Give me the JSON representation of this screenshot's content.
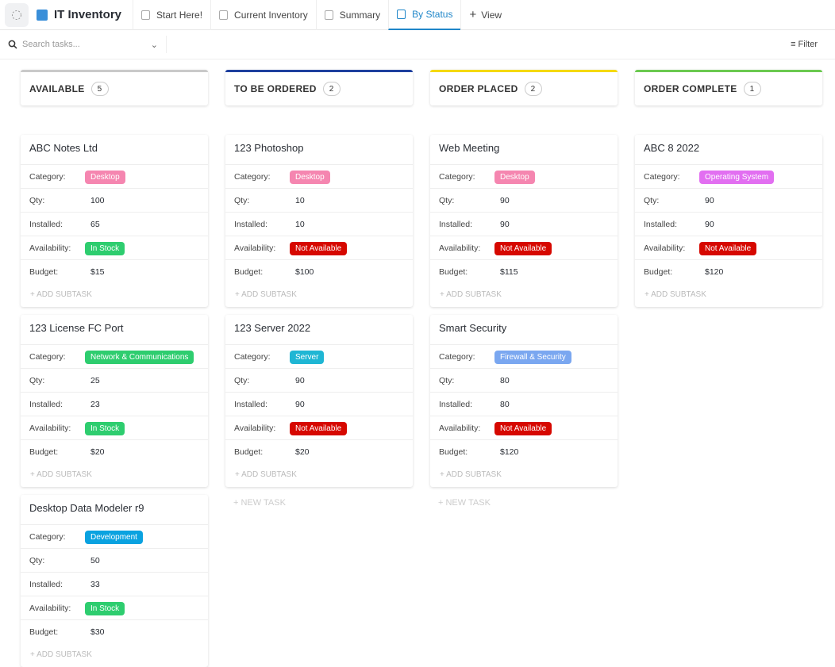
{
  "app": {
    "title": "IT Inventory",
    "tabs": [
      {
        "label": "Start Here!",
        "active": false
      },
      {
        "label": "Current Inventory",
        "active": false
      },
      {
        "label": "Summary",
        "active": false
      },
      {
        "label": "By Status",
        "active": true
      }
    ],
    "add_view": "View"
  },
  "toolbar": {
    "search_placeholder": "Search tasks...",
    "filter": "Filter"
  },
  "field_labels": [
    "Category:",
    "Qty:",
    "Installed:",
    "Availability:",
    "Budget:"
  ],
  "add_subtask": "+ ADD SUBTASK",
  "new_task": "+ NEW TASK",
  "columns": [
    {
      "name": "AVAILABLE",
      "count": 5,
      "color": "#c9c9c9",
      "show_new_task": false,
      "cards": [
        {
          "title": "ABC Notes Ltd",
          "category": {
            "label": "Desktop",
            "color": "#f586b0"
          },
          "qty": 100,
          "installed": 65,
          "availability": {
            "label": "In Stock",
            "color": "#2ecd6f"
          },
          "budget": "$15"
        },
        {
          "title": "123 License FC Port",
          "category": {
            "label": "Network & Communications",
            "color": "#2ecd6f"
          },
          "qty": 25,
          "installed": 23,
          "availability": {
            "label": "In Stock",
            "color": "#2ecd6f"
          },
          "budget": "$20"
        },
        {
          "title": "Desktop Data Modeler r9",
          "category": {
            "label": "Development",
            "color": "#0aa2e0"
          },
          "qty": 50,
          "installed": 33,
          "availability": {
            "label": "In Stock",
            "color": "#2ecd6f"
          },
          "budget": "$30"
        }
      ]
    },
    {
      "name": "TO BE ORDERED",
      "count": 2,
      "color": "#1e3f9e",
      "show_new_task": true,
      "cards": [
        {
          "title": "123 Photoshop",
          "category": {
            "label": "Desktop",
            "color": "#f586b0"
          },
          "qty": 10,
          "installed": 10,
          "availability": {
            "label": "Not Available",
            "color": "#d60800"
          },
          "budget": "$100"
        },
        {
          "title": "123 Server 2022",
          "category": {
            "label": "Server",
            "color": "#1fb6d4"
          },
          "qty": 90,
          "installed": 90,
          "availability": {
            "label": "Not Available",
            "color": "#d60800"
          },
          "budget": "$20"
        }
      ]
    },
    {
      "name": "ORDER PLACED",
      "count": 2,
      "color": "#f5d90a",
      "show_new_task": true,
      "cards": [
        {
          "title": "Web Meeting",
          "category": {
            "label": "Desktop",
            "color": "#f586b0"
          },
          "qty": 90,
          "installed": 90,
          "availability": {
            "label": "Not Available",
            "color": "#d60800"
          },
          "budget": "$115"
        },
        {
          "title": "Smart Security",
          "category": {
            "label": "Firewall & Security",
            "color": "#7aa7f0"
          },
          "qty": 80,
          "installed": 80,
          "availability": {
            "label": "Not Available",
            "color": "#d60800"
          },
          "budget": "$120"
        }
      ]
    },
    {
      "name": "ORDER COMPLETE",
      "count": 1,
      "color": "#6bc950",
      "show_new_task": false,
      "cards": [
        {
          "title": "ABC 8 2022",
          "category": {
            "label": "Operating System",
            "color": "#e26ff1"
          },
          "qty": 90,
          "installed": 90,
          "availability": {
            "label": "Not Available",
            "color": "#d60800"
          },
          "budget": "$120"
        }
      ]
    }
  ]
}
